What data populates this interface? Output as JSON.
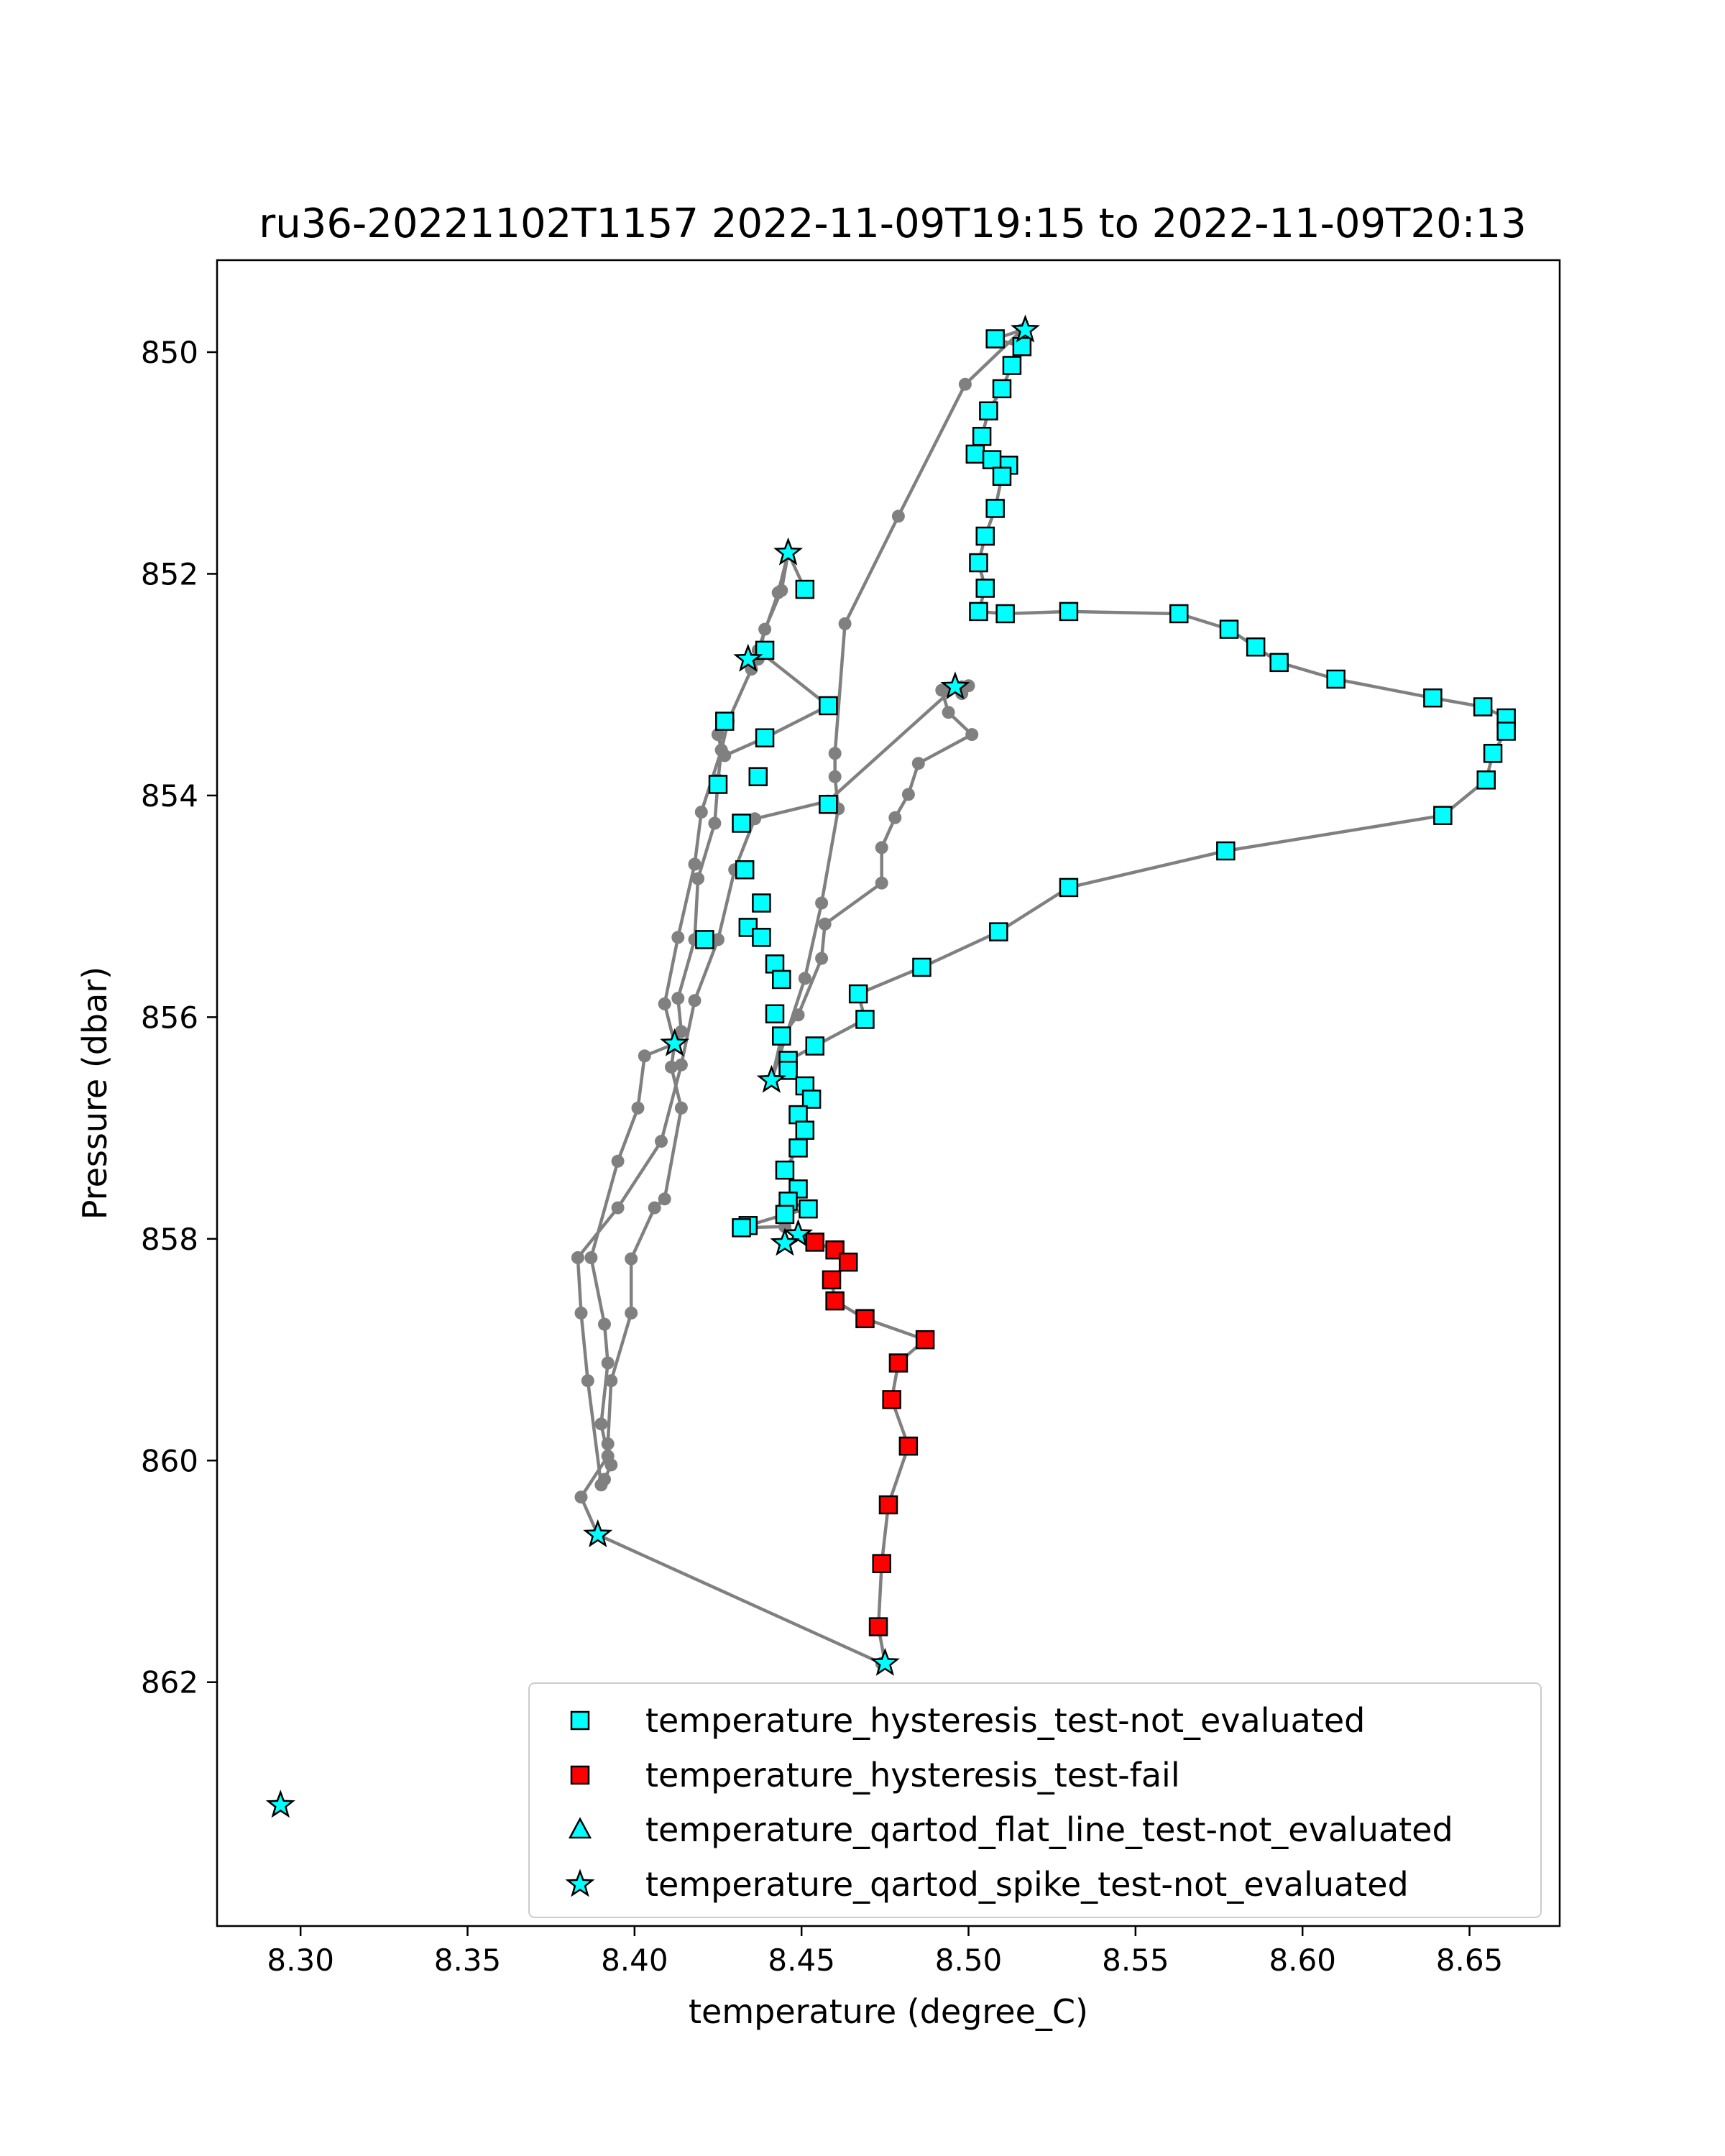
{
  "chart_data": {
    "type": "scatter",
    "title": "ru36-20221102T1157 2022-11-09T19:15 to 2022-11-09T20:13",
    "xlabel": "temperature (degree_C)",
    "ylabel": "Pressure (dbar)",
    "xlim": [
      8.275,
      8.677
    ],
    "ylim": [
      864.2,
      849.17
    ],
    "y_inverted": true,
    "x_ticks": [
      "8.30",
      "8.35",
      "8.40",
      "8.45",
      "8.50",
      "8.55",
      "8.60",
      "8.65"
    ],
    "y_ticks": [
      "850",
      "852",
      "854",
      "856",
      "858",
      "860",
      "862"
    ],
    "grid": false,
    "legend_position": "lower right",
    "profile_line": {
      "color": "#808080",
      "points": [
        [
          8.516,
          849.8
        ],
        [
          8.508,
          849.88
        ],
        [
          8.516,
          849.95
        ],
        [
          8.513,
          850.12
        ],
        [
          8.51,
          850.33
        ],
        [
          8.506,
          850.53
        ],
        [
          8.504,
          850.76
        ],
        [
          8.502,
          850.92
        ],
        [
          8.512,
          851.02
        ],
        [
          8.507,
          850.97
        ],
        [
          8.51,
          851.12
        ],
        [
          8.508,
          851.41
        ],
        [
          8.505,
          851.66
        ],
        [
          8.503,
          851.9
        ],
        [
          8.505,
          852.13
        ],
        [
          8.503,
          852.34
        ],
        [
          8.511,
          852.36
        ],
        [
          8.53,
          852.34
        ],
        [
          8.563,
          852.36
        ],
        [
          8.578,
          852.5
        ],
        [
          8.586,
          852.66
        ],
        [
          8.593,
          852.8
        ],
        [
          8.61,
          852.95
        ],
        [
          8.639,
          853.12
        ],
        [
          8.654,
          853.2
        ],
        [
          8.661,
          853.3
        ],
        [
          8.661,
          853.42
        ],
        [
          8.657,
          853.62
        ],
        [
          8.655,
          853.86
        ],
        [
          8.642,
          854.18
        ],
        [
          8.577,
          854.5
        ],
        [
          8.53,
          854.83
        ],
        [
          8.509,
          855.23
        ],
        [
          8.486,
          855.55
        ],
        [
          8.467,
          855.79
        ],
        [
          8.469,
          856.02
        ],
        [
          8.454,
          856.26
        ],
        [
          8.446,
          856.39
        ],
        [
          8.446,
          856.48
        ],
        [
          8.451,
          856.62
        ],
        [
          8.453,
          856.74
        ],
        [
          8.449,
          856.88
        ],
        [
          8.451,
          857.02
        ],
        [
          8.449,
          857.18
        ],
        [
          8.445,
          857.38
        ],
        [
          8.449,
          857.55
        ],
        [
          8.446,
          857.66
        ],
        [
          8.452,
          857.73
        ],
        [
          8.445,
          857.78
        ],
        [
          8.434,
          857.88
        ],
        [
          8.432,
          857.9
        ],
        [
          8.445,
          857.89
        ],
        [
          8.449,
          857.96
        ],
        [
          8.454,
          858.03
        ],
        [
          8.46,
          858.1
        ],
        [
          8.464,
          858.21
        ],
        [
          8.459,
          858.37
        ],
        [
          8.46,
          858.56
        ],
        [
          8.469,
          858.72
        ],
        [
          8.487,
          858.91
        ],
        [
          8.479,
          859.12
        ],
        [
          8.477,
          859.45
        ],
        [
          8.482,
          859.87
        ],
        [
          8.476,
          860.4
        ],
        [
          8.474,
          860.93
        ],
        [
          8.473,
          861.5
        ],
        [
          8.475,
          861.83
        ],
        [
          8.475,
          861.83
        ],
        [
          8.474,
          861.83
        ],
        [
          8.389,
          860.67
        ],
        [
          8.384,
          860.33
        ],
        [
          8.392,
          859.96
        ],
        [
          8.39,
          859.67
        ],
        [
          8.392,
          859.12
        ],
        [
          8.391,
          858.77
        ],
        [
          8.387,
          858.17
        ],
        [
          8.395,
          857.3
        ],
        [
          8.401,
          856.82
        ],
        [
          8.403,
          856.35
        ],
        [
          8.412,
          856.24
        ],
        [
          8.414,
          856.13
        ],
        [
          8.413,
          855.83
        ],
        [
          8.418,
          855.3
        ],
        [
          8.419,
          854.75
        ],
        [
          8.424,
          854.25
        ],
        [
          8.425,
          853.86
        ],
        [
          8.426,
          853.59
        ],
        [
          8.425,
          853.45
        ],
        [
          8.428,
          853.33
        ],
        [
          8.435,
          852.86
        ],
        [
          8.443,
          852.17
        ],
        [
          8.446,
          851.81
        ],
        [
          8.451,
          852.14
        ],
        [
          8.446,
          851.81
        ],
        [
          8.444,
          852.15
        ],
        [
          8.439,
          852.5
        ],
        [
          8.437,
          852.77
        ],
        [
          8.437,
          852.69
        ],
        [
          8.458,
          853.19
        ],
        [
          8.439,
          853.48
        ],
        [
          8.427,
          853.64
        ],
        [
          8.425,
          853.45
        ],
        [
          8.428,
          853.33
        ],
        [
          8.426,
          853.59
        ],
        [
          8.42,
          854.15
        ],
        [
          8.418,
          854.62
        ],
        [
          8.413,
          855.28
        ],
        [
          8.409,
          855.88
        ],
        [
          8.412,
          856.24
        ],
        [
          8.411,
          856.45
        ],
        [
          8.414,
          856.82
        ],
        [
          8.409,
          857.64
        ],
        [
          8.406,
          857.72
        ],
        [
          8.399,
          858.18
        ],
        [
          8.399,
          858.67
        ],
        [
          8.393,
          859.28
        ],
        [
          8.392,
          859.85
        ],
        [
          8.393,
          860.04
        ],
        [
          8.391,
          860.17
        ],
        [
          8.39,
          860.22
        ],
        [
          8.386,
          859.28
        ],
        [
          8.384,
          858.67
        ],
        [
          8.383,
          858.17
        ],
        [
          8.395,
          857.72
        ],
        [
          8.408,
          857.12
        ],
        [
          8.414,
          856.43
        ],
        [
          8.418,
          855.85
        ],
        [
          8.425,
          855.3
        ],
        [
          8.43,
          854.67
        ],
        [
          8.436,
          854.21
        ],
        [
          8.458,
          854.05
        ],
        [
          8.496,
          853.02
        ],
        [
          8.5,
          853.01
        ],
        [
          8.498,
          853.02
        ],
        [
          8.498,
          853.08
        ],
        [
          8.496,
          853.02
        ],
        [
          8.492,
          853.05
        ],
        [
          8.494,
          853.25
        ],
        [
          8.501,
          853.45
        ],
        [
          8.485,
          853.71
        ],
        [
          8.482,
          853.99
        ],
        [
          8.478,
          854.2
        ],
        [
          8.474,
          854.47
        ],
        [
          8.474,
          854.79
        ],
        [
          8.457,
          855.16
        ],
        [
          8.456,
          855.47
        ],
        [
          8.449,
          855.98
        ],
        [
          8.444,
          856.18
        ],
        [
          8.441,
          856.57
        ],
        [
          8.451,
          855.65
        ],
        [
          8.456,
          854.97
        ],
        [
          8.461,
          854.12
        ],
        [
          8.46,
          853.83
        ],
        [
          8.46,
          853.62
        ],
        [
          8.463,
          852.45
        ],
        [
          8.479,
          851.48
        ],
        [
          8.499,
          850.29
        ],
        [
          8.516,
          849.8
        ]
      ]
    },
    "series": [
      {
        "name": "temperature_hysteresis_test-not_evaluated",
        "marker": "square",
        "color": "#00ffff",
        "points": [
          [
            8.508,
            849.88
          ],
          [
            8.516,
            849.95
          ],
          [
            8.513,
            850.12
          ],
          [
            8.51,
            850.33
          ],
          [
            8.506,
            850.53
          ],
          [
            8.504,
            850.76
          ],
          [
            8.502,
            850.92
          ],
          [
            8.512,
            851.02
          ],
          [
            8.507,
            850.97
          ],
          [
            8.51,
            851.12
          ],
          [
            8.508,
            851.41
          ],
          [
            8.505,
            851.66
          ],
          [
            8.503,
            851.9
          ],
          [
            8.505,
            852.13
          ],
          [
            8.503,
            852.34
          ],
          [
            8.511,
            852.36
          ],
          [
            8.53,
            852.34
          ],
          [
            8.563,
            852.36
          ],
          [
            8.578,
            852.5
          ],
          [
            8.586,
            852.66
          ],
          [
            8.593,
            852.8
          ],
          [
            8.61,
            852.95
          ],
          [
            8.639,
            853.12
          ],
          [
            8.654,
            853.2
          ],
          [
            8.661,
            853.3
          ],
          [
            8.661,
            853.42
          ],
          [
            8.657,
            853.62
          ],
          [
            8.655,
            853.86
          ],
          [
            8.642,
            854.18
          ],
          [
            8.577,
            854.5
          ],
          [
            8.53,
            854.83
          ],
          [
            8.509,
            855.23
          ],
          [
            8.486,
            855.55
          ],
          [
            8.467,
            855.79
          ],
          [
            8.469,
            856.02
          ],
          [
            8.454,
            856.26
          ],
          [
            8.446,
            856.39
          ],
          [
            8.446,
            856.48
          ],
          [
            8.451,
            856.62
          ],
          [
            8.453,
            856.74
          ],
          [
            8.449,
            856.88
          ],
          [
            8.451,
            857.02
          ],
          [
            8.449,
            857.18
          ],
          [
            8.445,
            857.38
          ],
          [
            8.449,
            857.55
          ],
          [
            8.446,
            857.66
          ],
          [
            8.452,
            857.73
          ],
          [
            8.445,
            857.78
          ],
          [
            8.434,
            857.88
          ],
          [
            8.432,
            857.9
          ],
          [
            8.451,
            852.14
          ],
          [
            8.439,
            852.69
          ],
          [
            8.458,
            853.19
          ],
          [
            8.427,
            853.33
          ],
          [
            8.439,
            853.48
          ],
          [
            8.437,
            853.83
          ],
          [
            8.425,
            853.9
          ],
          [
            8.458,
            854.08
          ],
          [
            8.432,
            854.25
          ],
          [
            8.433,
            854.67
          ],
          [
            8.438,
            854.97
          ],
          [
            8.434,
            855.19
          ],
          [
            8.438,
            855.28
          ],
          [
            8.421,
            855.3
          ],
          [
            8.442,
            855.52
          ],
          [
            8.444,
            855.66
          ],
          [
            8.442,
            855.97
          ],
          [
            8.444,
            856.17
          ]
        ]
      },
      {
        "name": "temperature_hysteresis_test-fail",
        "marker": "square",
        "color": "#ff0000",
        "points": [
          [
            8.454,
            858.03
          ],
          [
            8.46,
            858.1
          ],
          [
            8.464,
            858.21
          ],
          [
            8.459,
            858.37
          ],
          [
            8.46,
            858.56
          ],
          [
            8.469,
            858.72
          ],
          [
            8.487,
            858.91
          ],
          [
            8.479,
            859.12
          ],
          [
            8.477,
            859.45
          ],
          [
            8.482,
            859.87
          ],
          [
            8.476,
            860.4
          ],
          [
            8.474,
            860.93
          ],
          [
            8.473,
            861.5
          ]
        ]
      },
      {
        "name": "temperature_qartod_flat_line_test-not_evaluated",
        "marker": "triangle",
        "color": "#00ffff",
        "points": []
      },
      {
        "name": "temperature_qartod_spike_test-not_evaluated",
        "marker": "star",
        "color": "#00ffff",
        "points": [
          [
            8.517,
            849.8
          ],
          [
            8.446,
            851.81
          ],
          [
            8.434,
            852.77
          ],
          [
            8.496,
            853.02
          ],
          [
            8.412,
            856.24
          ],
          [
            8.441,
            856.57
          ],
          [
            8.449,
            857.96
          ],
          [
            8.445,
            858.04
          ],
          [
            8.475,
            861.83
          ],
          [
            8.389,
            860.67
          ],
          [
            8.294,
            863.11
          ]
        ]
      }
    ],
    "legend": [
      "temperature_hysteresis_test-not_evaluated",
      "temperature_hysteresis_test-fail",
      "temperature_qartod_flat_line_test-not_evaluated",
      "temperature_qartod_spike_test-not_evaluated"
    ]
  }
}
